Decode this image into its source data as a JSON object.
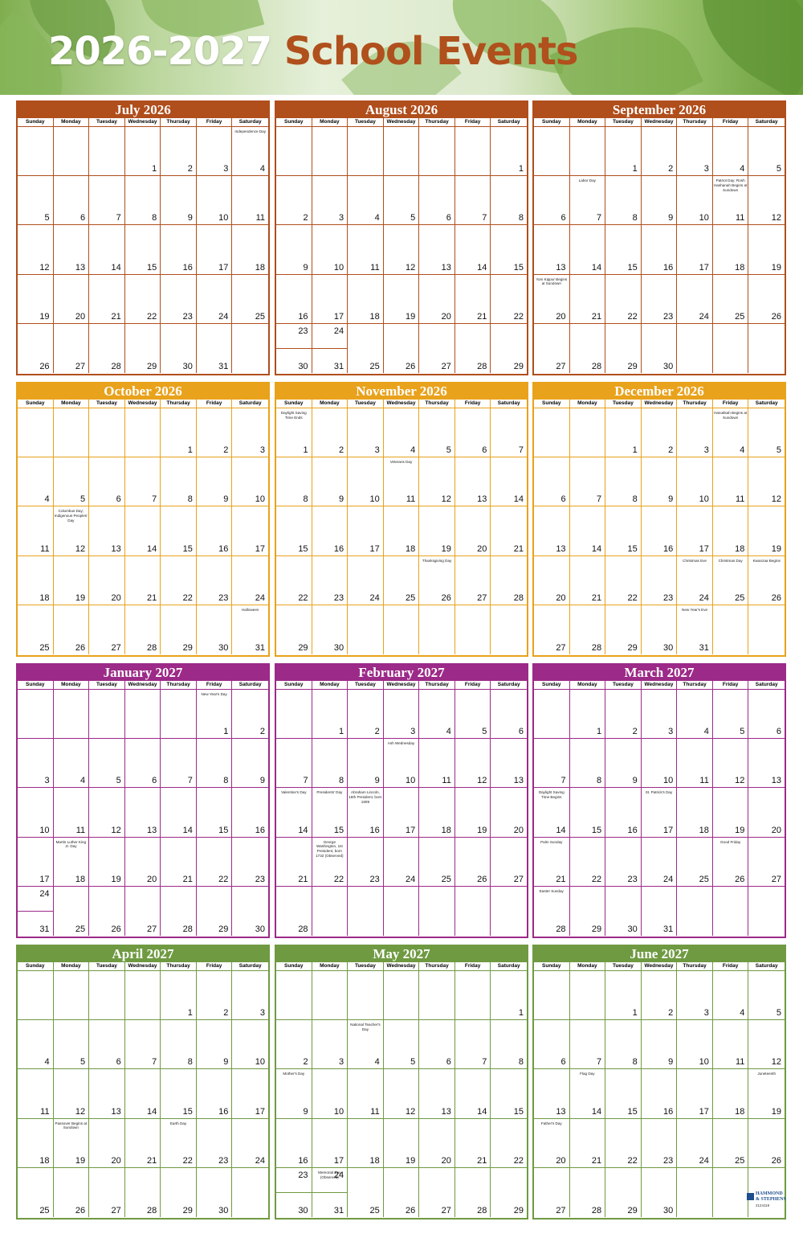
{
  "title": {
    "years": "2026-2027",
    "events": "School Events"
  },
  "weekdays": [
    "Sunday",
    "Monday",
    "Tuesday",
    "Wednesday",
    "Thursday",
    "Friday",
    "Saturday"
  ],
  "colors": {
    "summer": "#b04e1c",
    "fall": "#e8a21c",
    "winter": "#9c2a88",
    "spring": "#6f9a42",
    "title_accent": "#b0501c"
  },
  "brand": {
    "line1": "HAMMOND",
    "line2": "& STEPHENS",
    "code": "2124119"
  },
  "months": [
    {
      "name": "July 2026",
      "color": "#b04e1c",
      "start": 3,
      "days": 31,
      "events": {
        "4": "Independence Day"
      }
    },
    {
      "name": "August 2026",
      "color": "#b04e1c",
      "start": 6,
      "days": 31,
      "events": {}
    },
    {
      "name": "September 2026",
      "color": "#b04e1c",
      "start": 2,
      "days": 30,
      "events": {
        "7": "Labor Day",
        "11": "Patriot Day; Rosh Hashanah Begins at Sundown",
        "20": "Yom Kippur Begins at Sundown"
      }
    },
    {
      "name": "October 2026",
      "color": "#e8a21c",
      "start": 4,
      "days": 31,
      "events": {
        "12": "Columbus Day; Indigenous Peoples' Day",
        "31": "Halloween"
      }
    },
    {
      "name": "November 2026",
      "color": "#e8a21c",
      "start": 0,
      "days": 30,
      "events": {
        "1": "Daylight Saving Time Ends",
        "11": "Veterans Day",
        "26": "Thanksgiving Day"
      }
    },
    {
      "name": "December 2026",
      "color": "#e8a21c",
      "start": 2,
      "days": 31,
      "events": {
        "4": "Hanukkah Begins at Sundown",
        "24": "Christmas Eve",
        "25": "Christmas Day",
        "26": "Kwanzaa Begins",
        "31": "New Year's Eve"
      }
    },
    {
      "name": "January 2027",
      "color": "#9c2a88",
      "start": 5,
      "days": 31,
      "events": {
        "1": "New Year's Day",
        "18": "Martin Luther King Jr. Day"
      }
    },
    {
      "name": "February 2027",
      "color": "#9c2a88",
      "start": 1,
      "days": 28,
      "events": {
        "10": "Ash Wednesday",
        "14": "Valentine's Day",
        "15": "Presidents' Day",
        "16": "Abraham Lincoln, 16th President, born 1809",
        "22": "George Washington, 1st President, born 1732 (Observed)"
      }
    },
    {
      "name": "March 2027",
      "color": "#9c2a88",
      "start": 1,
      "days": 31,
      "events": {
        "14": "Daylight Saving Time Begins",
        "17": "St. Patrick's Day",
        "21": "Palm Sunday",
        "26": "Good Friday",
        "28": "Easter Sunday"
      }
    },
    {
      "name": "April 2027",
      "color": "#6f9a42",
      "start": 4,
      "days": 30,
      "events": {
        "19": "Passover Begins at Sundown",
        "22": "Earth Day"
      }
    },
    {
      "name": "May 2027",
      "color": "#6f9a42",
      "start": 6,
      "days": 31,
      "events": {
        "4": "National Teacher's Day",
        "9": "Mother's Day",
        "31": "Memorial Day (Observed)"
      }
    },
    {
      "name": "June 2027",
      "color": "#6f9a42",
      "start": 2,
      "days": 30,
      "events": {
        "14": "Flag Day",
        "19": "Juneteenth",
        "20": "Father's Day"
      }
    }
  ]
}
